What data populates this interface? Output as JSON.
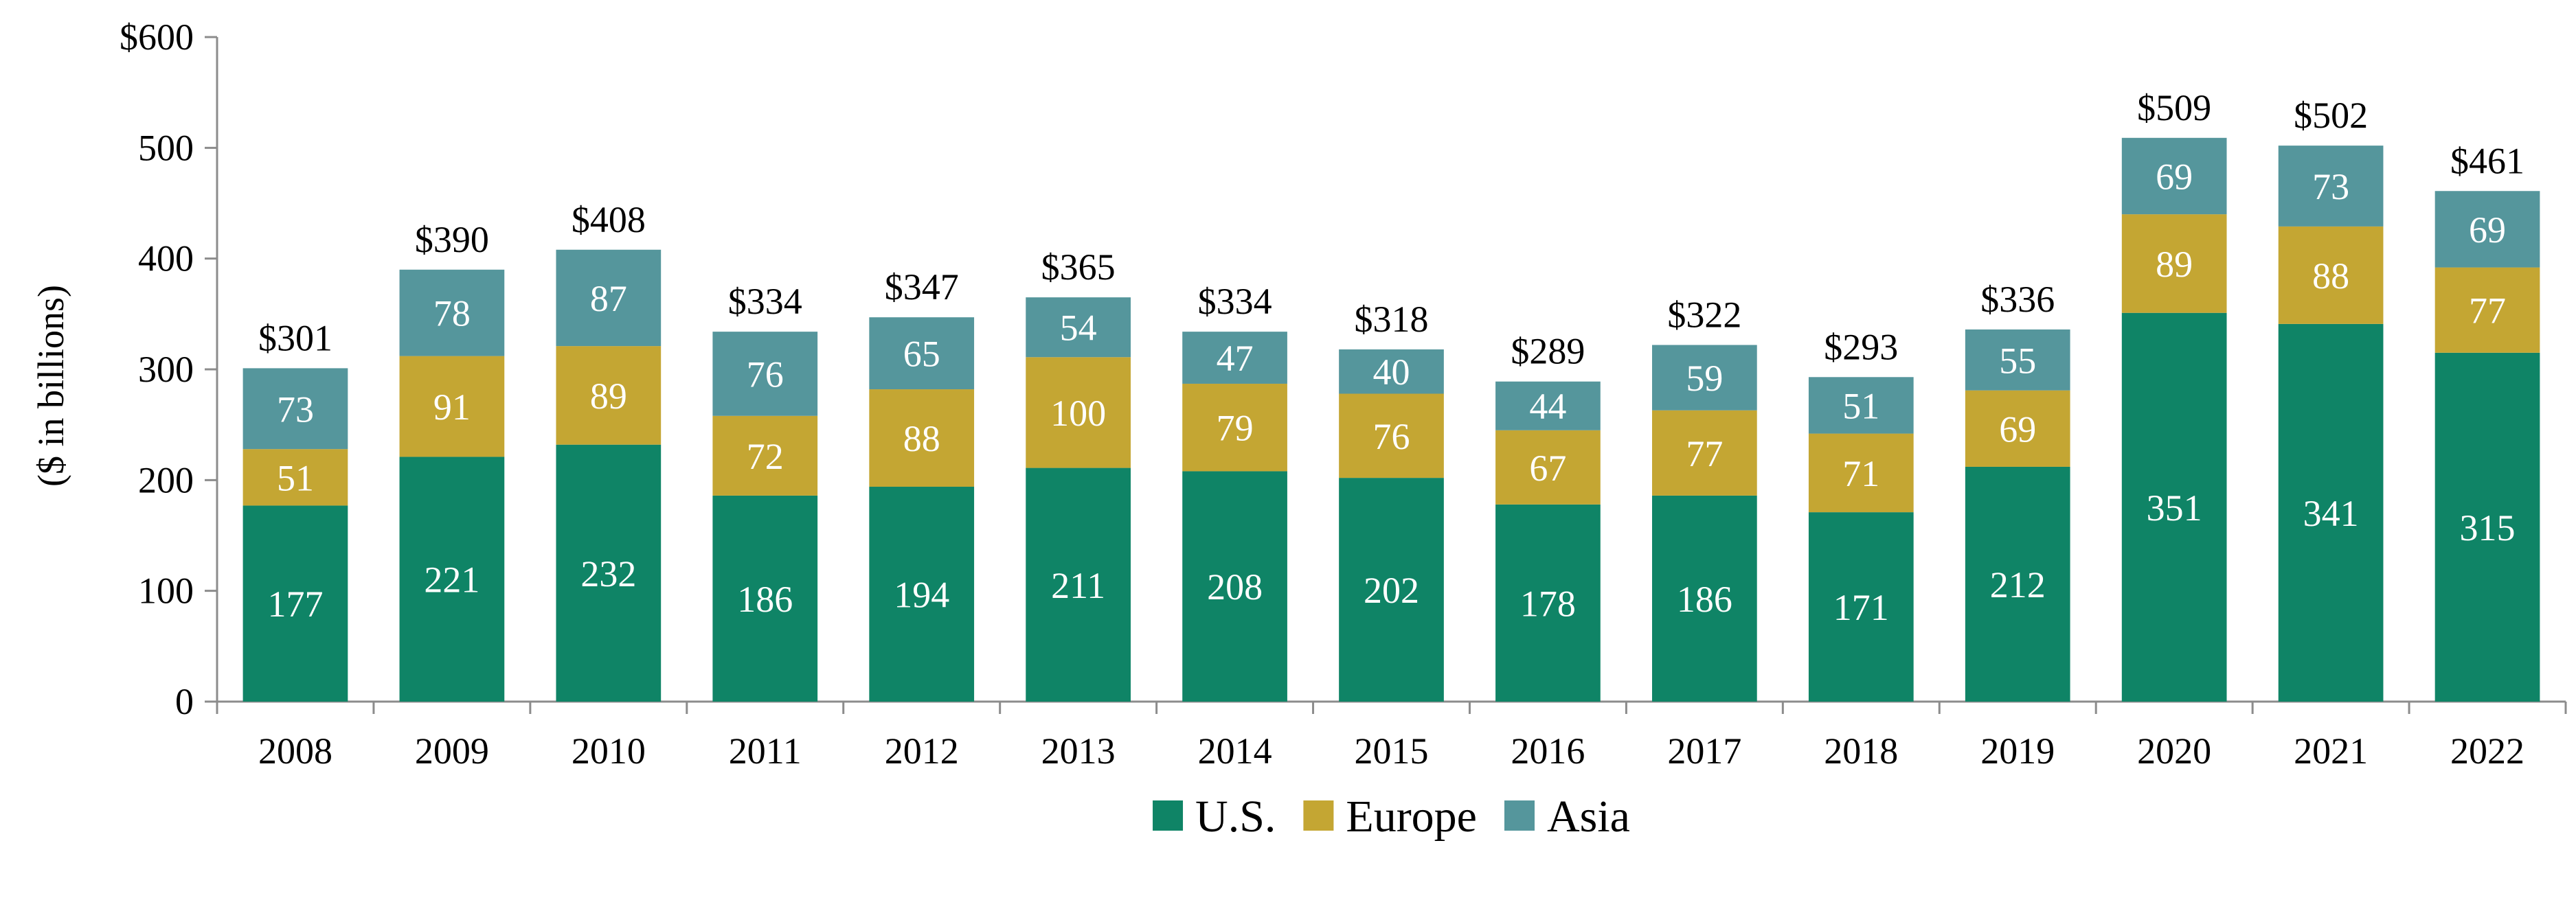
{
  "chart_data": {
    "type": "bar",
    "stacked": true,
    "categories": [
      "2008",
      "2009",
      "2010",
      "2011",
      "2012",
      "2013",
      "2014",
      "2015",
      "2016",
      "2017",
      "2018",
      "2019",
      "2020",
      "2021",
      "2022"
    ],
    "series": [
      {
        "name": "U.S.",
        "color": "#0f8466",
        "values": [
          177,
          221,
          232,
          186,
          194,
          211,
          208,
          202,
          178,
          186,
          171,
          212,
          351,
          341,
          315
        ]
      },
      {
        "name": "Europe",
        "color": "#c4a633",
        "values": [
          51,
          91,
          89,
          72,
          88,
          100,
          79,
          76,
          67,
          77,
          71,
          69,
          89,
          88,
          77
        ]
      },
      {
        "name": "Asia",
        "color": "#55969c",
        "values": [
          73,
          78,
          87,
          76,
          65,
          54,
          47,
          40,
          44,
          59,
          51,
          55,
          69,
          73,
          69
        ]
      }
    ],
    "totals": [
      "$301",
      "$390",
      "$408",
      "$334",
      "$347",
      "$365",
      "$334",
      "$318",
      "$289",
      "$322",
      "$293",
      "$336",
      "$509",
      "$502",
      "$461"
    ],
    "ylabel": "($ in billions)",
    "ylim": [
      0,
      600
    ],
    "yticks": [
      0,
      100,
      200,
      300,
      400,
      500,
      600
    ],
    "yticklabels": [
      "0",
      "100",
      "200",
      "300",
      "400",
      "500",
      "$600"
    ],
    "grid": false,
    "legend_position": "bottom-center"
  }
}
